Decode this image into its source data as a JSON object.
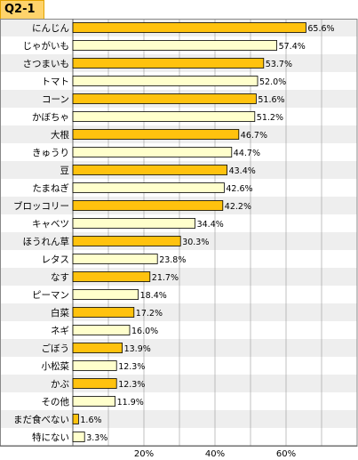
{
  "question_label": "Q2-1",
  "chart_data": {
    "type": "bar",
    "orientation": "horizontal",
    "categories": [
      "にんじん",
      "じゃがいも",
      "さつまいも",
      "トマト",
      "コーン",
      "かぼちゃ",
      "大根",
      "きゅうり",
      "豆",
      "たまねぎ",
      "ブロッコリー",
      "キャベツ",
      "ほうれん草",
      "レタス",
      "なす",
      "ピーマン",
      "白菜",
      "ネギ",
      "ごぼう",
      "小松菜",
      "かぶ",
      "その他",
      "まだ食べない",
      "特にない"
    ],
    "values": [
      65.6,
      57.4,
      53.7,
      52.0,
      51.6,
      51.2,
      46.7,
      44.7,
      43.4,
      42.6,
      42.2,
      34.4,
      30.3,
      23.8,
      21.7,
      18.4,
      17.2,
      16.0,
      13.9,
      12.3,
      12.3,
      11.9,
      1.6,
      3.3
    ],
    "value_labels": [
      "65.6%",
      "57.4%",
      "53.7%",
      "52.0%",
      "51.6%",
      "51.2%",
      "46.7%",
      "44.7%",
      "43.4%",
      "42.6%",
      "42.2%",
      "34.4%",
      "30.3%",
      "23.8%",
      "21.7%",
      "18.4%",
      "17.2%",
      "16.0%",
      "13.9%",
      "12.3%",
      "12.3%",
      "11.9%",
      "1.6%",
      "3.3%"
    ],
    "highlighted": [
      true,
      false,
      true,
      false,
      true,
      false,
      true,
      false,
      true,
      false,
      true,
      false,
      true,
      false,
      true,
      false,
      true,
      false,
      true,
      false,
      true,
      false,
      true,
      false
    ],
    "xlim": [
      0,
      80
    ],
    "ticks": [
      20,
      40,
      60
    ],
    "tick_labels": [
      "20%",
      "40%",
      "60%"
    ],
    "grid": true,
    "colors": {
      "highlight_bar": "#FFC20E",
      "plain_bar": "#FFFFCC",
      "bar_border": "#000000",
      "row_shade": "#EEEEEE",
      "grid": "#999999"
    }
  }
}
